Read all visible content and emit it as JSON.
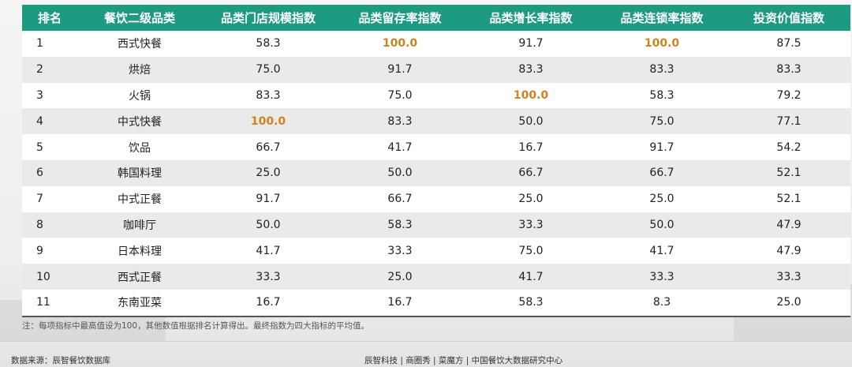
{
  "chart_data": {
    "type": "table",
    "columns": [
      "排名",
      "餐饮二级品类",
      "品类门店规模指数",
      "品类留存率指数",
      "品类增长率指数",
      "品类连锁率指数",
      "投资价值指数"
    ],
    "rows": [
      [
        "1",
        "西式快餐",
        "58.3",
        "100.0",
        "91.7",
        "100.0",
        "87.5"
      ],
      [
        "2",
        "烘焙",
        "75.0",
        "91.7",
        "83.3",
        "83.3",
        "83.3"
      ],
      [
        "3",
        "火锅",
        "83.3",
        "75.0",
        "100.0",
        "58.3",
        "79.2"
      ],
      [
        "4",
        "中式快餐",
        "100.0",
        "83.3",
        "50.0",
        "75.0",
        "77.1"
      ],
      [
        "5",
        "饮品",
        "66.7",
        "41.7",
        "16.7",
        "91.7",
        "54.2"
      ],
      [
        "6",
        "韩国料理",
        "25.0",
        "50.0",
        "66.7",
        "66.7",
        "52.1"
      ],
      [
        "7",
        "中式正餐",
        "91.7",
        "66.7",
        "25.0",
        "25.0",
        "52.1"
      ],
      [
        "8",
        "咖啡厅",
        "50.0",
        "58.3",
        "33.3",
        "50.0",
        "47.9"
      ],
      [
        "9",
        "日本料理",
        "41.7",
        "33.3",
        "75.0",
        "41.7",
        "47.9"
      ],
      [
        "10",
        "西式正餐",
        "33.3",
        "25.0",
        "41.7",
        "33.3",
        "33.3"
      ],
      [
        "11",
        "东南亚菜",
        "16.7",
        "16.7",
        "58.3",
        "8.3",
        "25.0"
      ]
    ],
    "highlight_value": "100.0",
    "highlight_color": "#d0821c",
    "header_color": "#1d9b82"
  },
  "note": "注：每项指标中最高值设为100，其他数值根据排名计算得出。最终指数为四大指标的平均值。",
  "footer": {
    "source": "数据来源：辰智餐饮数据库",
    "partners": "辰智科技 | 商圈秀 | 菜魔方 | 中国餐饮大数据研究中心"
  }
}
